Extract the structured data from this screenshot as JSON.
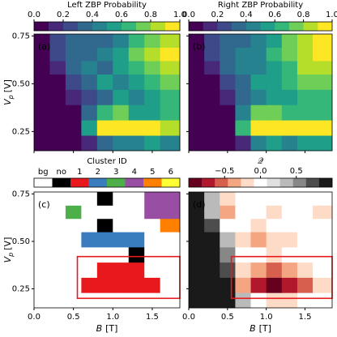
{
  "chart_data": [
    {
      "type": "heatmap",
      "panel": "(a)",
      "panel_color": "#ffffff",
      "colorbar": {
        "title": "Left ZBP Probability",
        "clim": [
          0,
          1
        ],
        "ticks": [
          {
            "value": 0,
            "label": "0.0"
          },
          0.2,
          0.4,
          0.6,
          0.8,
          {
            "value": 1,
            "label": "1.0"
          }
        ],
        "colors": [
          "#440154",
          "#482878",
          "#3e4989",
          "#31688e",
          "#26828e",
          "#1f9e89",
          "#35b779",
          "#6ece58",
          "#b5de2b",
          "#fde725"
        ]
      },
      "xlim": [
        0,
        1.85
      ],
      "ylim": [
        0.15,
        0.76
      ],
      "xticks": [
        0,
        0.5,
        1,
        1.5
      ],
      "yticks": [
        0.25,
        {
          "value": 0.5,
          "label": "0.50"
        },
        0.75
      ],
      "show_xticklabels": false,
      "show_yticklabels": true,
      "ylabel_symbol": "V",
      "ylabel_sub": "p",
      "ylabel_unit": "[V]",
      "x": [
        0,
        0.2,
        0.4,
        0.6,
        0.8,
        1.0,
        1.2,
        1.4,
        1.6,
        1.85
      ],
      "y": [
        0.15,
        0.23,
        0.31,
        0.39,
        0.47,
        0.55,
        0.62,
        0.69,
        0.76
      ],
      "z": [
        [
          0,
          0,
          0,
          0.1,
          0.3,
          0.4,
          0.4,
          0.5,
          0.4
        ],
        [
          0,
          0,
          0,
          0.5,
          0.9,
          1.0,
          0.9,
          0.9,
          0.8
        ],
        [
          0,
          0,
          0,
          0.3,
          0.6,
          0.7,
          0.5,
          0.5,
          0.6
        ],
        [
          0,
          0,
          0.1,
          0.2,
          0.3,
          0.5,
          0.4,
          0.5,
          0.6
        ],
        [
          0,
          0,
          0.2,
          0.3,
          0.5,
          0.4,
          0.5,
          0.6,
          0.7
        ],
        [
          0,
          0.1,
          0.3,
          0.4,
          0.3,
          0.5,
          0.6,
          0.7,
          0.8
        ],
        [
          0,
          0.2,
          0.3,
          0.3,
          0.4,
          0.5,
          0.7,
          0.8,
          0.9
        ],
        [
          0,
          0.2,
          0.3,
          0.3,
          0.3,
          0.4,
          0.6,
          0.7,
          0.8
        ]
      ]
    },
    {
      "type": "heatmap",
      "panel": "(b)",
      "panel_color": "#ffffff",
      "colorbar": {
        "title": "Right ZBP Probability",
        "clim": [
          0,
          1
        ],
        "ticks": [
          {
            "value": 0,
            "label": "0.0"
          },
          0.2,
          0.4,
          0.6,
          0.8,
          {
            "value": 1,
            "label": "1.0"
          }
        ],
        "colors": [
          "#440154",
          "#482878",
          "#3e4989",
          "#31688e",
          "#26828e",
          "#1f9e89",
          "#35b779",
          "#6ece58",
          "#b5de2b",
          "#fde725"
        ]
      },
      "xlim": [
        0,
        1.85
      ],
      "ylim": [
        0.15,
        0.76
      ],
      "xticks": [
        0,
        0.5,
        1,
        1.5
      ],
      "yticks": [
        0.25,
        0.5,
        0.75
      ],
      "show_xticklabels": false,
      "show_yticklabels": false,
      "x": [
        0,
        0.2,
        0.4,
        0.6,
        0.8,
        1.0,
        1.2,
        1.4,
        1.6,
        1.85
      ],
      "y": [
        0.15,
        0.23,
        0.31,
        0.39,
        0.47,
        0.55,
        0.62,
        0.69,
        0.76
      ],
      "z": [
        [
          0,
          0,
          0,
          0.1,
          0.4,
          0.5,
          0.4,
          0.5,
          0.5
        ],
        [
          0,
          0,
          0,
          0.6,
          1.0,
          1.0,
          0.9,
          0.9,
          0.9
        ],
        [
          0,
          0,
          0,
          0.4,
          0.7,
          0.7,
          0.6,
          0.6,
          0.6
        ],
        [
          0,
          0,
          0.1,
          0.3,
          0.4,
          0.5,
          0.5,
          0.6,
          0.6
        ],
        [
          0,
          0,
          0.2,
          0.3,
          0.5,
          0.5,
          0.6,
          0.7,
          0.7
        ],
        [
          0,
          0.1,
          0.3,
          0.4,
          0.4,
          0.5,
          0.6,
          0.8,
          0.8
        ],
        [
          0,
          0.2,
          0.3,
          0.4,
          0.4,
          0.6,
          0.7,
          0.8,
          0.9
        ],
        [
          0,
          0.2,
          0.3,
          0.3,
          0.4,
          0.5,
          0.7,
          0.8,
          0.9
        ]
      ]
    },
    {
      "type": "heatmap",
      "panel": "(c)",
      "panel_color": "#000000",
      "colorbar": {
        "title": "Cluster ID",
        "categories": [
          "bg",
          "no",
          "1",
          "2",
          "3",
          "4",
          "5",
          "6"
        ],
        "colors": [
          "#ffffff",
          "#000000",
          "#e8191c",
          "#3a7dbf",
          "#4daf4a",
          "#984ea3",
          "#ff7f00",
          "#ffff33"
        ]
      },
      "xlim": [
        0,
        1.85
      ],
      "ylim": [
        0.15,
        0.76
      ],
      "xticks": [
        {
          "value": 0,
          "label": "0.0"
        },
        0.5,
        {
          "value": 1,
          "label": "1.0"
        },
        1.5
      ],
      "yticks": [
        0.25,
        {
          "value": 0.5,
          "label": "0.50"
        },
        0.75
      ],
      "show_xticklabels": true,
      "show_yticklabels": true,
      "xlabel_symbol": "B",
      "xlabel_unit": "[T]",
      "ylabel_symbol": "V",
      "ylabel_sub": "p",
      "ylabel_unit": "[V]",
      "x": [
        0,
        0.2,
        0.4,
        0.6,
        0.8,
        1.0,
        1.2,
        1.4,
        1.6,
        1.85
      ],
      "y": [
        0.15,
        0.23,
        0.31,
        0.39,
        0.47,
        0.55,
        0.62,
        0.69,
        0.76
      ],
      "z": [
        [
          0,
          0,
          0,
          0,
          0,
          0,
          0,
          0,
          0
        ],
        [
          0,
          0,
          0,
          2,
          2,
          2,
          2,
          2,
          0
        ],
        [
          0,
          0,
          0,
          0,
          2,
          2,
          2,
          0,
          0
        ],
        [
          0,
          0,
          0,
          0,
          0,
          0,
          1,
          0,
          0
        ],
        [
          0,
          0,
          0,
          3,
          3,
          3,
          3,
          0,
          0
        ],
        [
          0,
          0,
          0,
          0,
          1,
          0,
          0,
          0,
          6
        ],
        [
          0,
          0,
          4,
          0,
          0,
          0,
          0,
          5,
          5
        ],
        [
          0,
          0,
          0,
          0,
          1,
          0,
          0,
          5,
          5
        ]
      ],
      "highlight": {
        "x": [
          0.55,
          1.85
        ],
        "y": [
          0.2,
          0.42
        ],
        "color": "#e8191c"
      }
    },
    {
      "type": "heatmap",
      "panel": "(d)",
      "panel_color": "#ffffff",
      "colorbar": {
        "title": "𝒬",
        "clim": [
          -1,
          1
        ],
        "ticks": [
          {
            "value": -0.5,
            "label": "−0.5"
          },
          {
            "value": 0,
            "label": "0.0"
          },
          0.5
        ],
        "colors": [
          "#67001f",
          "#b2182b",
          "#d6604d",
          "#f4a582",
          "#fddbc7",
          "#ffffff",
          "#e0e0e0",
          "#bababa",
          "#878787",
          "#4d4d4d",
          "#1a1a1a"
        ]
      },
      "xlim": [
        0,
        1.85
      ],
      "ylim": [
        0.15,
        0.76
      ],
      "xticks": [
        {
          "value": 0,
          "label": "0.0"
        },
        0.5,
        {
          "value": 1,
          "label": "1.0"
        },
        1.5
      ],
      "yticks": [
        0.25,
        0.5,
        0.75
      ],
      "show_xticklabels": true,
      "show_yticklabels": false,
      "xlabel_symbol": "B",
      "xlabel_unit": "[T]",
      "x": [
        0,
        0.2,
        0.4,
        0.6,
        0.8,
        1.0,
        1.2,
        1.4,
        1.6,
        1.85
      ],
      "y": [
        0.15,
        0.23,
        0.31,
        0.39,
        0.47,
        0.55,
        0.62,
        0.69,
        0.76
      ],
      "z": [
        [
          0.9,
          0.9,
          0.9,
          0.3,
          0,
          -0.1,
          -0.1,
          0,
          0
        ],
        [
          0.9,
          0.9,
          0.9,
          -0.3,
          -0.7,
          -0.9,
          -0.8,
          -0.6,
          -0.2
        ],
        [
          0.9,
          0.9,
          0.8,
          -0.2,
          -0.4,
          -0.5,
          -0.3,
          -0.1,
          0
        ],
        [
          0.9,
          0.9,
          0.6,
          0,
          0,
          -0.1,
          0,
          0,
          0
        ],
        [
          0.9,
          0.9,
          0.3,
          -0.2,
          -0.3,
          -0.2,
          -0.1,
          0,
          0
        ],
        [
          0.9,
          0.7,
          0,
          0,
          -0.1,
          0,
          0,
          0,
          0
        ],
        [
          0.9,
          0.4,
          -0.3,
          0,
          0,
          -0.1,
          0,
          0,
          -0.1
        ],
        [
          0.9,
          0.3,
          -0.1,
          0,
          0,
          0,
          0,
          0,
          0
        ]
      ],
      "highlight": {
        "x": [
          0.55,
          1.85
        ],
        "y": [
          0.2,
          0.42
        ],
        "color": "#e8191c"
      }
    }
  ]
}
